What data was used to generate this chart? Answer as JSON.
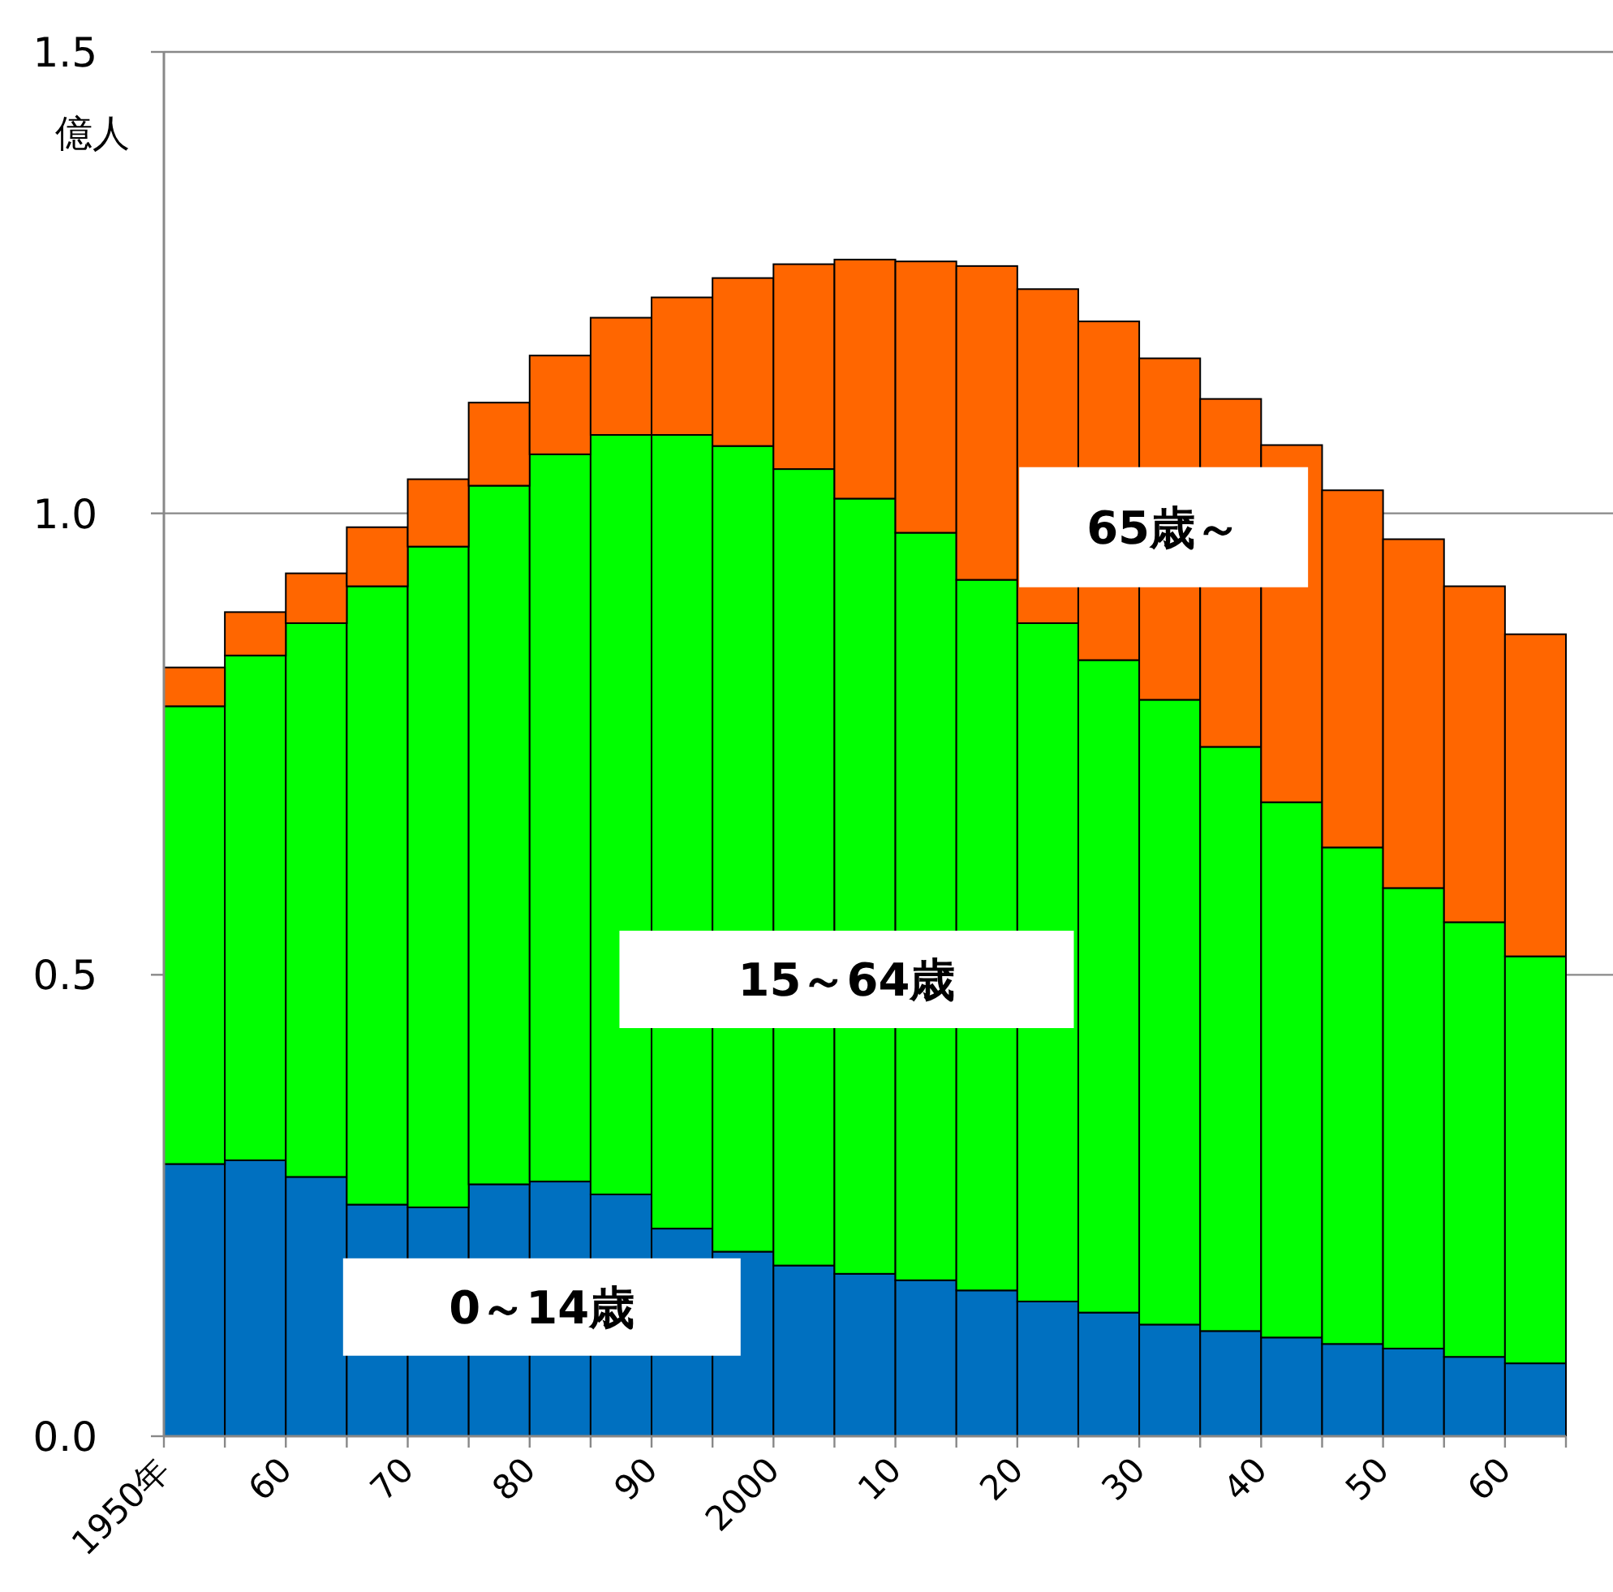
{
  "chart_data": {
    "type": "bar",
    "stacked": true,
    "ylabel": "億人",
    "ylim": [
      0,
      1.5
    ],
    "yticks": [
      {
        "value": 0,
        "label": "0.0"
      },
      {
        "value": 0.5,
        "label": "0.5"
      },
      {
        "value": 1,
        "label": "1.0"
      },
      {
        "value": 1.5,
        "label": "1.5"
      }
    ],
    "grid": "y",
    "legend": false,
    "categories": [
      "1950年",
      null,
      "60",
      null,
      "70",
      null,
      "80",
      null,
      "90",
      null,
      "2000",
      null,
      "10",
      null,
      "20",
      null,
      "30",
      null,
      "40",
      null,
      "50",
      null,
      "60"
    ],
    "series": [
      {
        "name": "0～14歳",
        "color": "#0070c0",
        "values": [
          0.295,
          0.299,
          0.281,
          0.251,
          0.248,
          0.273,
          0.276,
          0.262,
          0.225,
          0.2,
          0.185,
          0.176,
          0.169,
          0.158,
          0.146,
          0.134,
          0.121,
          0.114,
          0.107,
          0.1,
          0.095,
          0.086,
          0.079
        ]
      },
      {
        "name": "15～64歳",
        "color": "#00ff00",
        "values": [
          0.496,
          0.547,
          0.6,
          0.67,
          0.716,
          0.757,
          0.788,
          0.823,
          0.86,
          0.873,
          0.863,
          0.84,
          0.81,
          0.77,
          0.735,
          0.707,
          0.677,
          0.633,
          0.58,
          0.538,
          0.499,
          0.471,
          0.441
        ]
      },
      {
        "name": "65歳～",
        "color": "#ff6600",
        "values": [
          0.042,
          0.047,
          0.054,
          0.064,
          0.073,
          0.09,
          0.107,
          0.127,
          0.149,
          0.182,
          0.222,
          0.259,
          0.294,
          0.34,
          0.362,
          0.367,
          0.37,
          0.377,
          0.387,
          0.387,
          0.378,
          0.364,
          0.349
        ]
      }
    ]
  }
}
